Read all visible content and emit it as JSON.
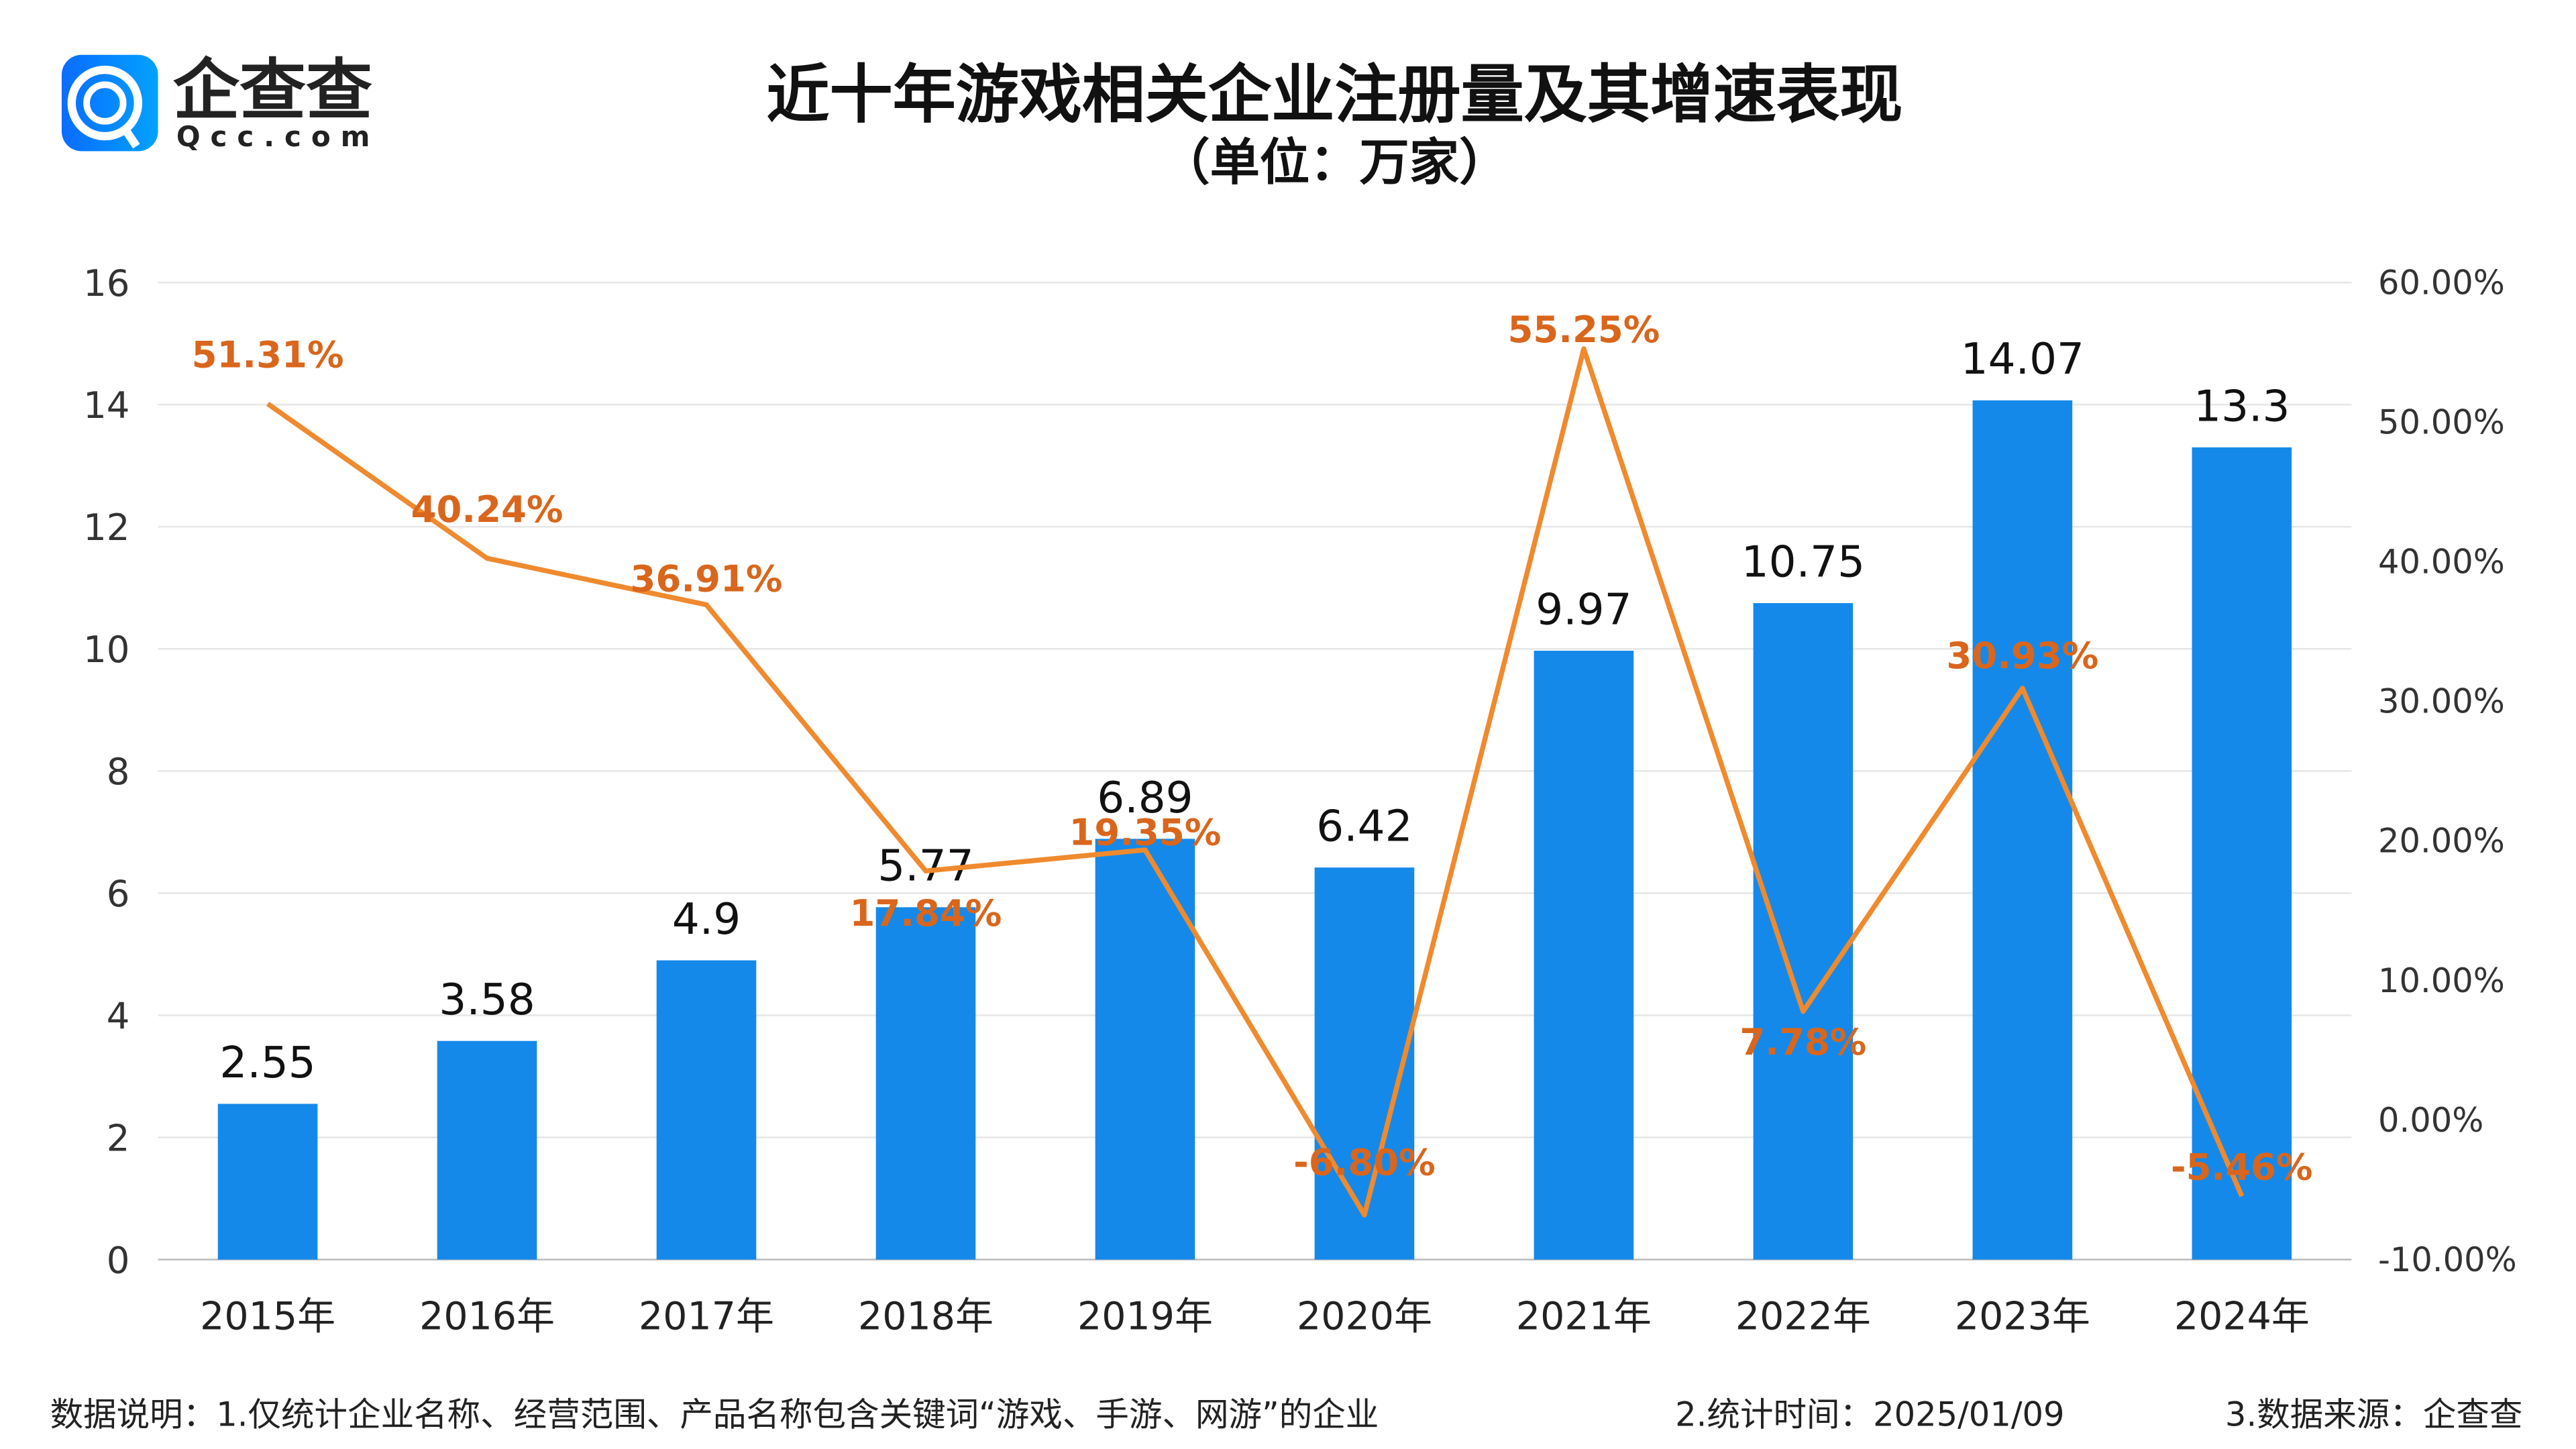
{
  "logo": {
    "cn": "企查查",
    "en": "Qcc.com"
  },
  "colors": {
    "bar": "#1589e9",
    "line": "#ef8a2e",
    "pct_label": "#d9661c",
    "grid": "#e6e6e6"
  },
  "chart_data": {
    "type": "bar+line",
    "title": "近十年游戏相关企业注册量及其增速表现",
    "subtitle": "（单位：万家）",
    "categories": [
      "2015年",
      "2016年",
      "2017年",
      "2018年",
      "2019年",
      "2020年",
      "2021年",
      "2022年",
      "2023年",
      "2024年"
    ],
    "series": [
      {
        "type": "bar",
        "axis": "left",
        "values": [
          2.55,
          3.58,
          4.9,
          5.77,
          6.89,
          6.42,
          9.97,
          10.75,
          14.07,
          13.3
        ],
        "labels": [
          "2.55",
          "3.58",
          "4.9",
          "5.77",
          "6.89",
          "6.42",
          "9.97",
          "10.75",
          "14.07",
          "13.3"
        ]
      },
      {
        "type": "line",
        "axis": "right",
        "values": [
          51.31,
          40.24,
          36.91,
          17.84,
          19.35,
          -6.8,
          55.25,
          7.78,
          30.93,
          -5.46
        ],
        "labels": [
          "51.31%",
          "40.24%",
          "36.91%",
          "17.84%",
          "19.35%",
          "-6.80%",
          "55.25%",
          "7.78%",
          "30.93%",
          "-5.46%"
        ]
      }
    ],
    "left_axis": {
      "ylim": [
        0,
        16
      ],
      "ticks": [
        "0",
        "2",
        "4",
        "6",
        "8",
        "10",
        "12",
        "14",
        "16"
      ]
    },
    "right_axis": {
      "ylim": [
        -10,
        60
      ],
      "ticks": [
        "-10.00%",
        "0.00%",
        "10.00%",
        "20.00%",
        "30.00%",
        "40.00%",
        "50.00%",
        "60.00%"
      ]
    },
    "grid": true,
    "legend": "none"
  },
  "footer": {
    "note1": "数据说明：1.仅统计企业名称、经营范围、产品名称包含关键词“游戏、手游、网游”的企业",
    "note2": "2.统计时间：2025/01/09",
    "note3": "3.数据来源：企查查"
  }
}
